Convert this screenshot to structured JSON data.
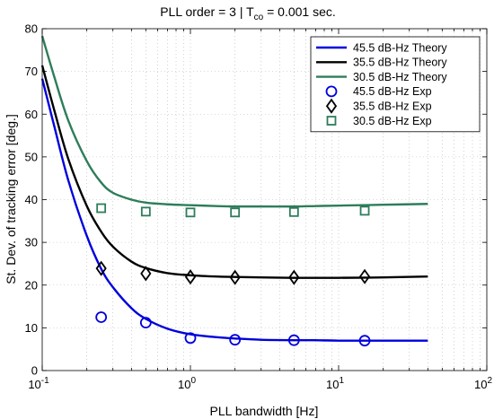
{
  "chart_data": {
    "type": "line",
    "title_main": "PLL order = 3  |  T",
    "title_sub": "co",
    "title_tail": " = 0.001 sec.",
    "xlabel": "PLL bandwidth [Hz]",
    "ylabel": "St. Dev. of tracking error [deg.]",
    "xscale": "log",
    "xlim": [
      0.1,
      100
    ],
    "ylim": [
      0,
      80
    ],
    "grid": true,
    "legend_position": "top-right",
    "x_ticks": [
      {
        "value": 0.1,
        "base": "10",
        "exp": "-1"
      },
      {
        "value": 1,
        "base": "10",
        "exp": "0"
      },
      {
        "value": 10,
        "base": "10",
        "exp": "1"
      },
      {
        "value": 100,
        "base": "10",
        "exp": "2"
      }
    ],
    "y_ticks": [
      "0",
      "10",
      "20",
      "30",
      "40",
      "50",
      "60",
      "70",
      "80"
    ],
    "theory_x": [
      0.1,
      0.12,
      0.15,
      0.2,
      0.25,
      0.3,
      0.4,
      0.5,
      0.7,
      1,
      1.5,
      2,
      3,
      5,
      7,
      10,
      20,
      40
    ],
    "series": [
      {
        "name": "45.5 dB-Hz Theory",
        "kind": "line",
        "color": "#0000dd",
        "values": [
          68.3,
          57.5,
          44.5,
          31.5,
          23.8,
          19.5,
          14.6,
          12.1,
          9.8,
          8.5,
          7.8,
          7.5,
          7.2,
          7.1,
          7.1,
          7.0,
          7.0,
          7.0
        ]
      },
      {
        "name": "35.5 dB-Hz Theory",
        "kind": "line",
        "color": "#000000",
        "values": [
          71.4,
          61.2,
          49.5,
          38.5,
          32.5,
          29.0,
          25.5,
          24.0,
          22.8,
          22.3,
          22.0,
          21.9,
          21.8,
          21.7,
          21.7,
          21.7,
          21.8,
          22.0
        ]
      },
      {
        "name": "30.5 dB-Hz Theory",
        "kind": "line",
        "color": "#2e7d5a",
        "values": [
          78.3,
          69.0,
          58.5,
          49.0,
          44.0,
          41.6,
          40.0,
          39.3,
          38.9,
          38.7,
          38.5,
          38.4,
          38.4,
          38.4,
          38.5,
          38.6,
          38.8,
          39.0
        ]
      },
      {
        "name": "45.5 dB-Hz Exp",
        "kind": "marker",
        "marker": "circle",
        "color": "#0000dd",
        "x": [
          0.25,
          0.5,
          1,
          2,
          5,
          15
        ],
        "values": [
          12.5,
          11.2,
          7.6,
          7.2,
          7.1,
          7.0
        ]
      },
      {
        "name": "35.5 dB-Hz Exp",
        "kind": "marker",
        "marker": "diamond",
        "color": "#000000",
        "x": [
          0.25,
          0.5,
          1,
          2,
          5,
          15
        ],
        "values": [
          23.9,
          22.7,
          21.9,
          21.8,
          21.8,
          22.0
        ]
      },
      {
        "name": "30.5 dB-Hz Exp",
        "kind": "marker",
        "marker": "square",
        "color": "#2e7d5a",
        "x": [
          0.25,
          0.5,
          1,
          2,
          5,
          15
        ],
        "values": [
          38.0,
          37.2,
          37.0,
          37.0,
          37.1,
          37.4
        ]
      }
    ]
  }
}
